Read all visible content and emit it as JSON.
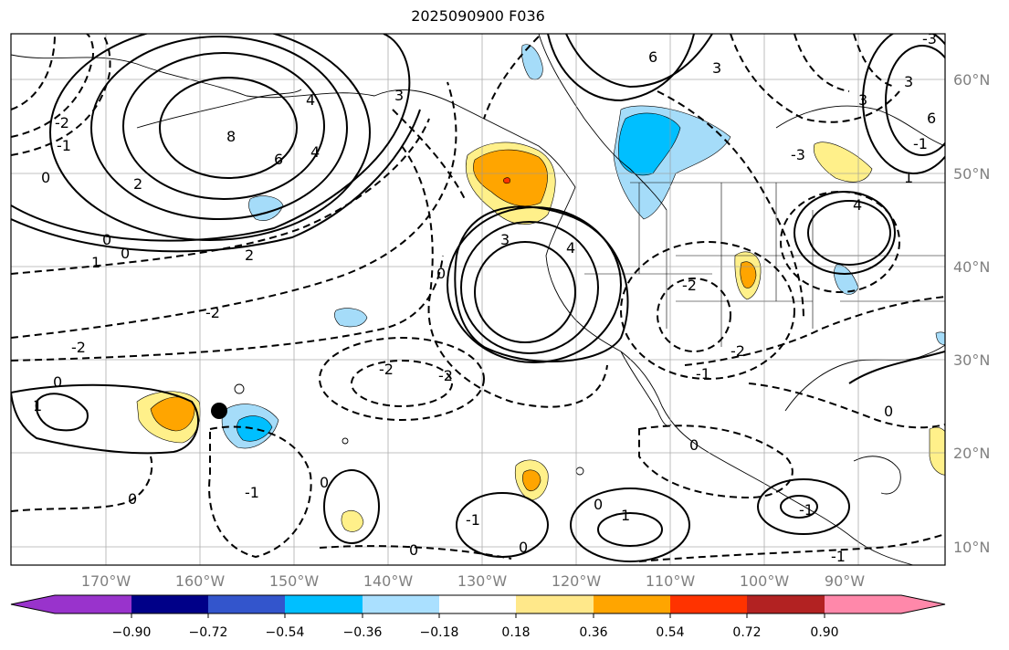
{
  "title": "2025090900 F036",
  "map": {
    "lon_ticks": [
      "170°W",
      "160°W",
      "150°W",
      "140°W",
      "130°W",
      "120°W",
      "110°W",
      "100°W",
      "90°W"
    ],
    "lat_ticks": [
      "60°N",
      "50°N",
      "40°N",
      "30°N",
      "20°N",
      "10°N"
    ],
    "contour_labels": [
      "0",
      "4",
      "6",
      "8",
      "6",
      "4",
      "2",
      "0",
      "1",
      "0",
      "-1",
      "-2",
      "-2",
      "-2",
      "0",
      "1",
      "0",
      "3",
      "4",
      "3",
      "3",
      "-3",
      "-2",
      "-2",
      "-1",
      "0",
      "-2",
      "0",
      "0",
      "1",
      "-1",
      "0",
      "-1",
      "0",
      "0",
      "-1",
      "2",
      "6",
      "3",
      "4",
      "1",
      "-3",
      "3",
      "-2",
      "-1",
      "0",
      "-1"
    ],
    "shading_colors": [
      "#a5dcf9",
      "#00bfff",
      "#fff08a",
      "#ffa500",
      "#ff3300"
    ],
    "marker": "filled-circle"
  },
  "colorbar": {
    "colors": [
      "#9933cc",
      "#000088",
      "#3355cc",
      "#00bfff",
      "#aae0ff",
      "#ffffff",
      "#ffe88a",
      "#ffa500",
      "#ff3300",
      "#b22222",
      "#ff88aa"
    ],
    "tick_labels": [
      "−0.90",
      "−0.72",
      "−0.54",
      "−0.36",
      "−0.18",
      "0.18",
      "0.36",
      "0.54",
      "0.72",
      "0.90"
    ]
  }
}
